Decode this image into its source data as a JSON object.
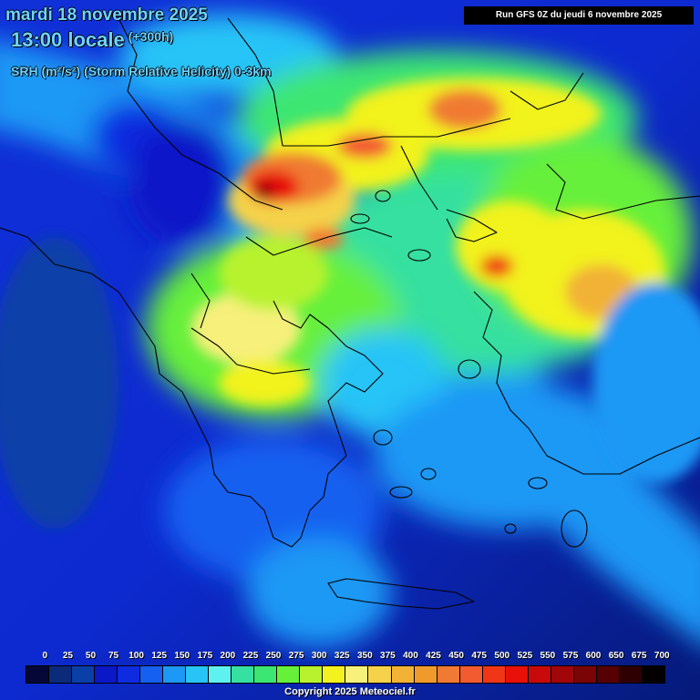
{
  "header": {
    "date": "mardi 18 novembre 2025",
    "time": "13:00 locale",
    "offset": "(+300h)",
    "parameter": "SRH (m²/s²) (Storm Relative Helicity) 0-3km",
    "run": "Run GFS 0Z du jeudi 6 novembre 2025"
  },
  "legend": {
    "labels": [
      "0",
      "25",
      "50",
      "75",
      "100",
      "125",
      "150",
      "175",
      "200",
      "225",
      "250",
      "275",
      "300",
      "325",
      "350",
      "375",
      "400",
      "425",
      "450",
      "475",
      "500",
      "525",
      "550",
      "575",
      "600",
      "650",
      "675",
      "700"
    ],
    "colors": [
      "#050836",
      "#0b2a7a",
      "#0a3fa8",
      "#0a18c8",
      "#0f2be0",
      "#1560f0",
      "#1e98f5",
      "#28c4f7",
      "#5df2f0",
      "#36e0a0",
      "#3ce672",
      "#66f03a",
      "#b8f22e",
      "#f2f21e",
      "#f7f07a",
      "#f5d24a",
      "#f2b235",
      "#f09a2c",
      "#f07a33",
      "#f25a30",
      "#f03616",
      "#e81008",
      "#c80a0a",
      "#a0060a",
      "#7a0406",
      "#560004",
      "#2e0002",
      "#050000"
    ],
    "copyright": "Copyright 2025 Meteociel.fr"
  }
}
